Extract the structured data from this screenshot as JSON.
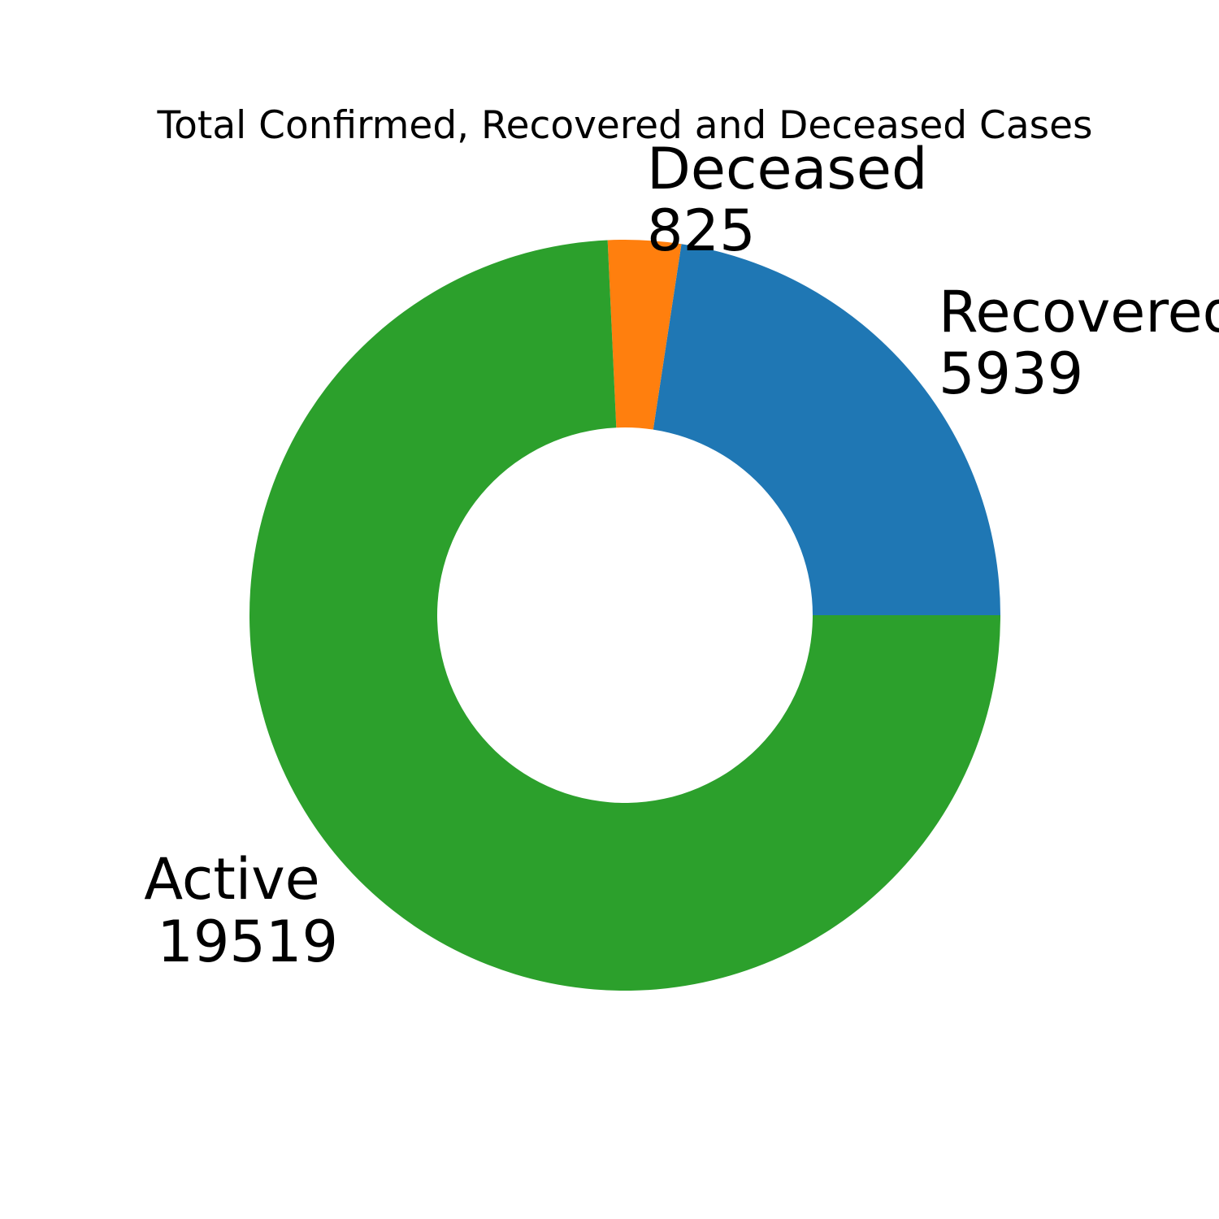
{
  "chart_data": {
    "type": "pie",
    "title": "Total Confirmed, Recovered and Deceased Cases",
    "donut": true,
    "start_angle": "0 degrees (3 o'clock), counter-clockwise",
    "categories": [
      "Recovered",
      "Deceased",
      "Active"
    ],
    "values": [
      5939,
      825,
      19519
    ],
    "colors": [
      "#1f77b4",
      "#ff7f0e",
      "#2ca02c"
    ],
    "labels": [
      {
        "name": "Recovered",
        "value": "5939"
      },
      {
        "name": "Deceased",
        "value": "825"
      },
      {
        "name": "Active",
        "value": "19519"
      }
    ]
  }
}
